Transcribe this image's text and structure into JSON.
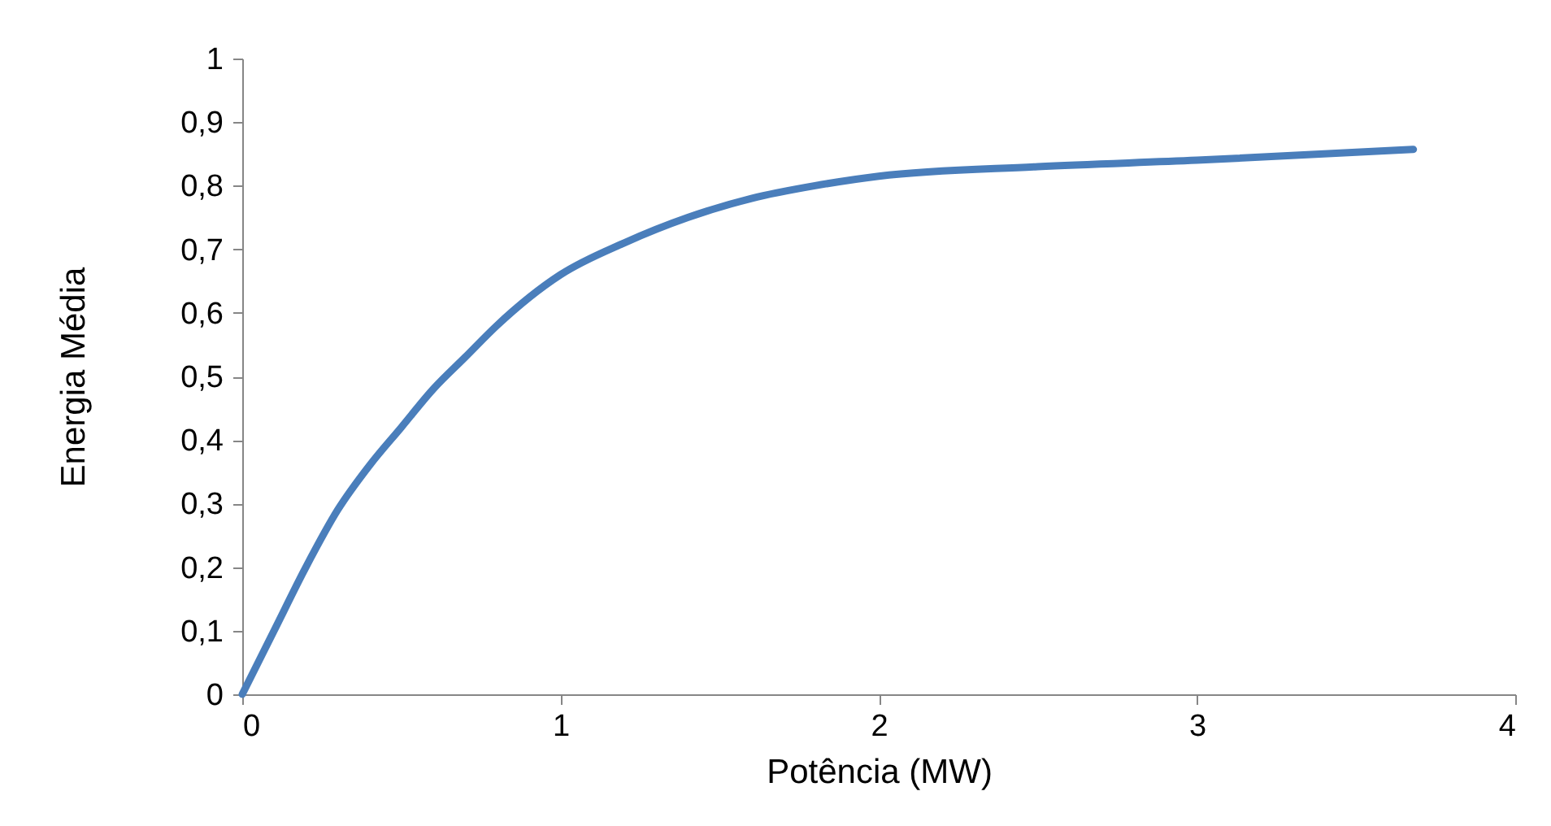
{
  "chart_data": {
    "type": "line",
    "xlabel": "Potência (MW)",
    "ylabel": "Energia Média",
    "x": [
      0,
      0.1,
      0.2,
      0.3,
      0.4,
      0.5,
      0.6,
      0.7,
      0.8,
      1.0,
      1.2,
      1.4,
      1.6,
      1.8,
      2.0,
      2.5,
      3.0,
      3.68
    ],
    "series": [
      {
        "color": "#4a7ebb",
        "values": [
          0,
          0.1,
          0.2,
          0.29,
          0.36,
          0.42,
          0.48,
          0.53,
          0.58,
          0.66,
          0.71,
          0.75,
          0.78,
          0.8,
          0.815,
          0.83,
          0.84,
          0.857
        ]
      }
    ],
    "xlim": [
      0,
      4
    ],
    "xticks": [
      0,
      1,
      2,
      3,
      4
    ],
    "ylim": [
      0,
      1
    ],
    "yticks": [
      0,
      {
        "value": 0.1,
        "label": "0,1"
      },
      {
        "value": 0.2,
        "label": "0,2"
      },
      {
        "value": 0.3,
        "label": "0,3"
      },
      {
        "value": 0.4,
        "label": "0,4"
      },
      {
        "value": 0.5,
        "label": "0,5"
      },
      {
        "value": 0.6,
        "label": "0,6"
      },
      {
        "value": 0.7,
        "label": "0,7"
      },
      {
        "value": 0.8,
        "label": "0,8"
      },
      {
        "value": 0.9,
        "label": "0,9"
      },
      1
    ],
    "grid": false,
    "marker": "none",
    "line_style": "solid",
    "legend": false
  }
}
